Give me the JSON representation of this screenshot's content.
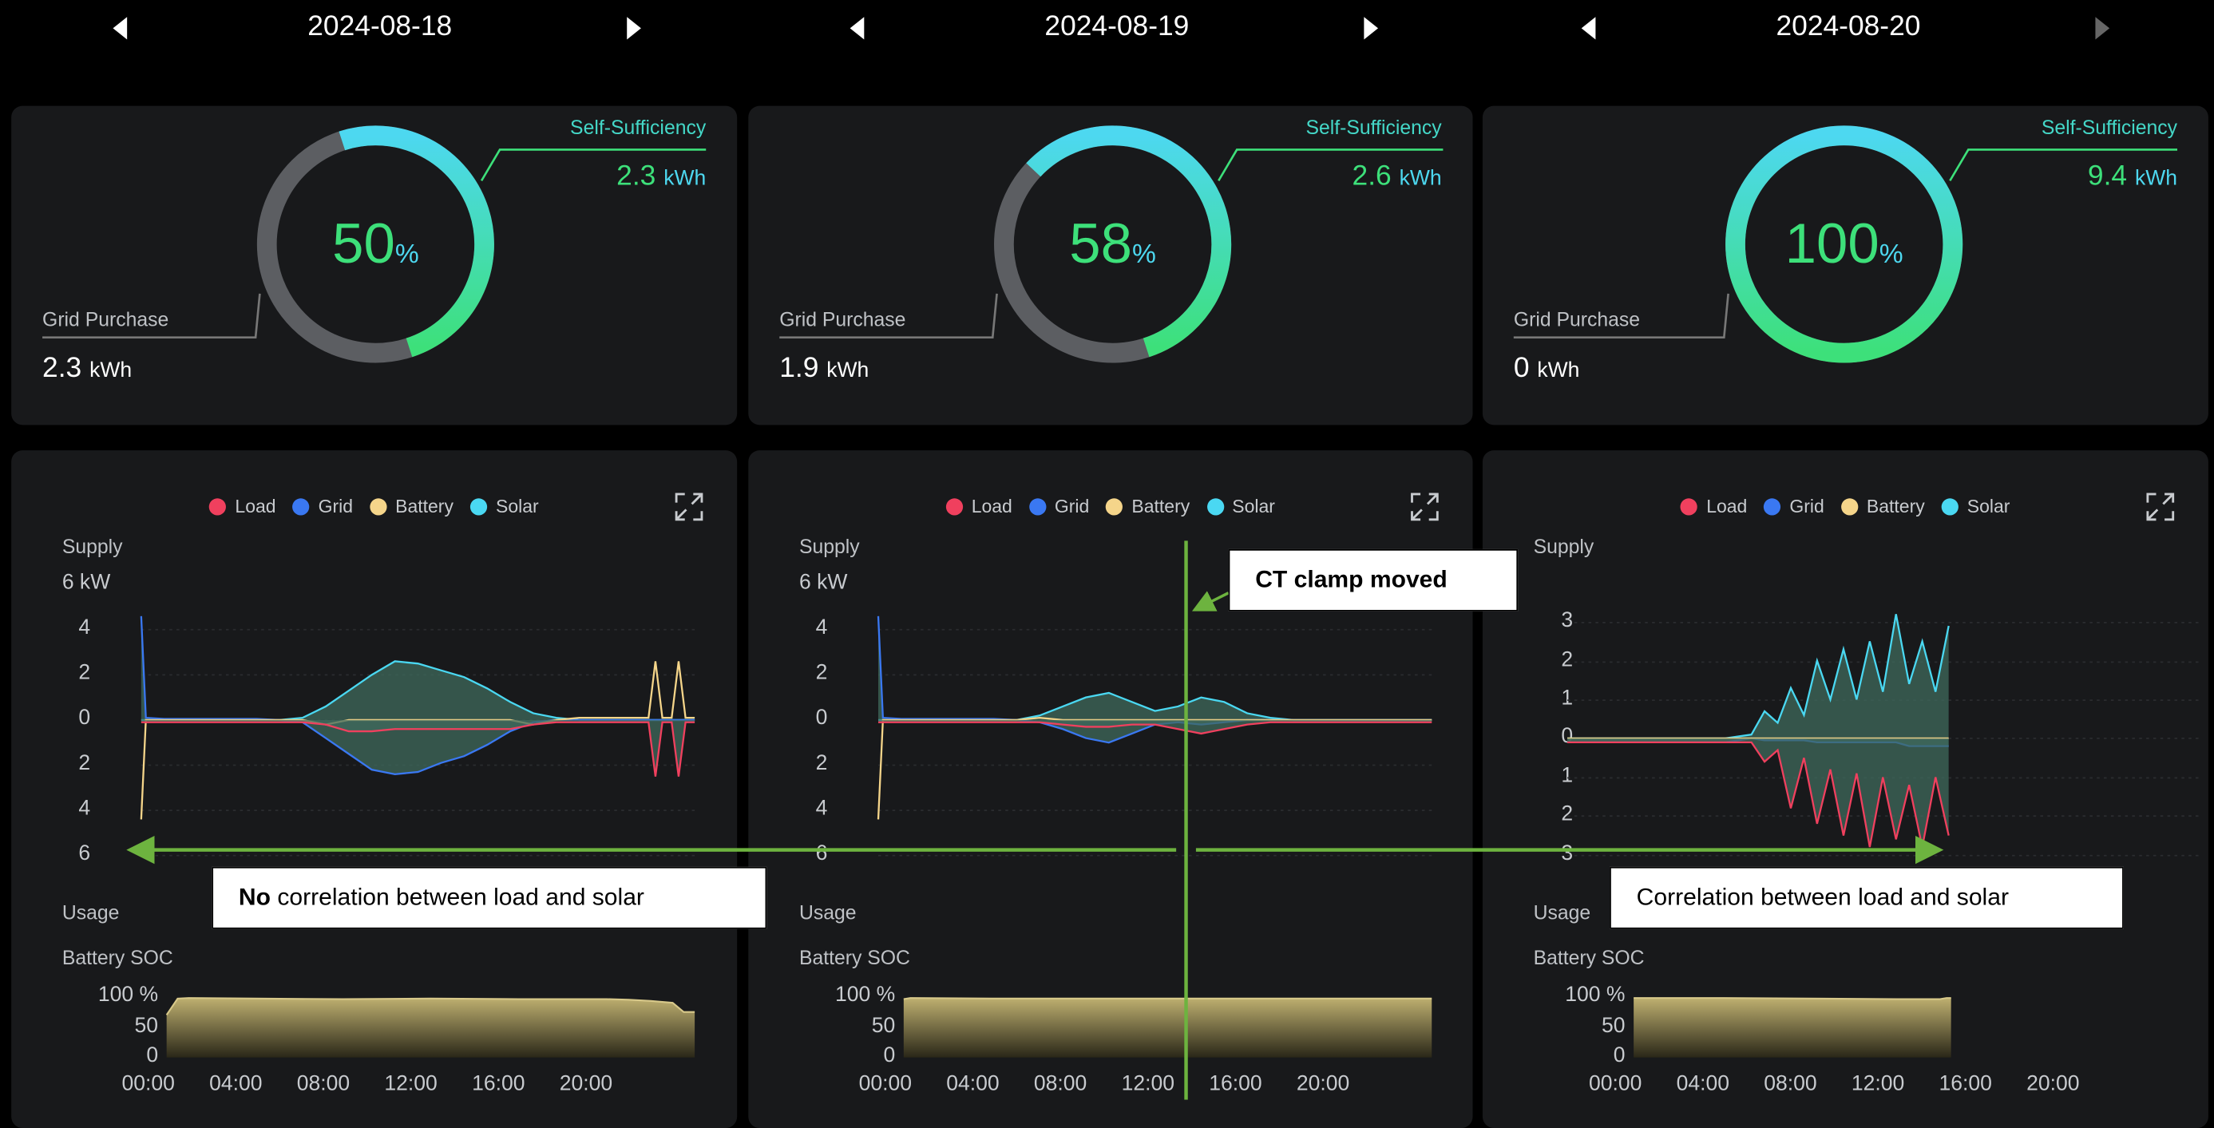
{
  "colors": {
    "load": "#f0405e",
    "grid": "#3a78f2",
    "battery": "#f5d58a",
    "solar": "#4ad8f2",
    "supply_fill": "#3f6a5c",
    "soc_fill": "#bfb070",
    "ring_gray": "#5c5e62",
    "ss_green": "#3de07a",
    "ss_cyan": "#4dd8f0",
    "annotation": "#6db33f"
  },
  "labels": {
    "self_sufficiency": "Self-Sufficiency",
    "grid_purchase": "Grid Purchase",
    "unit_kwh": "kWh",
    "percent": "%",
    "supply": "Supply",
    "usage": "Usage",
    "battery_soc": "Battery SOC",
    "legend": [
      "Load",
      "Grid",
      "Battery",
      "Solar"
    ],
    "time_ticks": [
      "00:00",
      "04:00",
      "08:00",
      "12:00",
      "16:00",
      "20:00"
    ],
    "soc_ticks": [
      "100 %",
      "50",
      "0"
    ]
  },
  "days": [
    {
      "date": "2024-08-18",
      "next_enabled": true,
      "percent": "50",
      "self_sufficiency_kwh": "2.3",
      "grid_purchase_kwh": "2.3",
      "supply_ticks": [
        "6 kW",
        "4",
        "2",
        "0",
        "2",
        "4",
        "6"
      ]
    },
    {
      "date": "2024-08-19",
      "next_enabled": true,
      "percent": "58",
      "self_sufficiency_kwh": "2.6",
      "grid_purchase_kwh": "1.9",
      "supply_ticks": [
        "6 kW",
        "4",
        "2",
        "0",
        "2",
        "4",
        "6"
      ]
    },
    {
      "date": "2024-08-20",
      "next_enabled": false,
      "percent": "100",
      "self_sufficiency_kwh": "9.4",
      "grid_purchase_kwh": "0",
      "supply_ticks": [
        "",
        "3",
        "2",
        "1",
        "0",
        "1",
        "2",
        "3"
      ]
    }
  ],
  "annotations": {
    "ct_clamp": "CT clamp moved",
    "no_corr_bold": "No",
    "no_corr_rest": " correlation between load and solar",
    "corr": "Correlation between load and solar"
  },
  "chart_data": [
    {
      "type": "area",
      "title": "2024-08-18",
      "xlabel": "",
      "ylabel": "kW",
      "x": [
        0,
        0.2,
        1,
        2,
        3,
        4,
        5,
        6,
        7,
        8,
        9,
        10,
        11,
        12,
        13,
        14,
        15,
        16,
        17,
        18,
        19,
        20,
        21,
        22,
        22.3,
        22.6,
        23,
        23.3,
        23.6,
        24
      ],
      "ylim": [
        -6,
        6
      ],
      "series": [
        {
          "name": "Solar",
          "values": [
            0,
            0,
            0,
            0,
            0,
            0,
            0,
            0,
            0.1,
            0.6,
            1.3,
            2.0,
            2.6,
            2.5,
            2.2,
            1.9,
            1.4,
            0.8,
            0.3,
            0.1,
            0,
            0,
            0,
            0,
            0,
            0,
            0,
            0,
            0,
            0
          ]
        },
        {
          "name": "Grid",
          "values": [
            4.6,
            0.1,
            0.05,
            0.05,
            0.05,
            0.05,
            0.05,
            0,
            -0.1,
            -0.8,
            -1.5,
            -2.2,
            -2.4,
            -2.3,
            -1.9,
            -1.6,
            -1.1,
            -0.5,
            -0.1,
            0,
            0,
            0,
            0,
            0,
            0,
            0,
            0,
            0,
            0,
            0
          ]
        },
        {
          "name": "Battery",
          "values": [
            -4.4,
            0,
            0,
            0,
            0,
            0,
            0,
            0,
            0,
            -0.2,
            0,
            0,
            0,
            0,
            0,
            0,
            0,
            0,
            -0.2,
            0,
            0.1,
            0.1,
            0.1,
            0.1,
            2.6,
            0.1,
            0.1,
            2.6,
            0.1,
            0.1
          ]
        },
        {
          "name": "Load",
          "values": [
            -0.1,
            -0.1,
            -0.1,
            -0.1,
            -0.1,
            -0.1,
            -0.1,
            -0.1,
            -0.1,
            -0.2,
            -0.5,
            -0.5,
            -0.4,
            -0.4,
            -0.4,
            -0.4,
            -0.4,
            -0.4,
            -0.2,
            -0.1,
            -0.1,
            -0.1,
            -0.1,
            -0.1,
            -2.5,
            -0.1,
            -0.1,
            -2.5,
            -0.1,
            -0.1
          ]
        }
      ],
      "soc": {
        "x": [
          0,
          0.5,
          1,
          4,
          8,
          12,
          16,
          20,
          21,
          22,
          23,
          23.5,
          24
        ],
        "values": [
          70,
          97,
          98,
          97,
          96,
          97,
          96,
          96,
          95,
          93,
          90,
          75,
          75
        ],
        "ylim": [
          0,
          100
        ]
      }
    },
    {
      "type": "area",
      "title": "2024-08-19",
      "xlabel": "",
      "ylabel": "kW",
      "x": [
        0,
        0.2,
        1,
        2,
        3,
        4,
        5,
        6,
        7,
        8,
        9,
        10,
        11,
        12,
        13,
        14,
        15,
        16,
        17,
        18,
        19,
        20,
        21,
        22,
        23,
        24
      ],
      "ylim": [
        -6,
        6
      ],
      "series": [
        {
          "name": "Solar",
          "values": [
            0,
            0,
            0,
            0,
            0,
            0,
            0,
            0,
            0.2,
            0.6,
            1.0,
            1.2,
            0.8,
            0.4,
            0.6,
            1.0,
            0.8,
            0.3,
            0.1,
            0,
            0,
            0,
            0,
            0,
            0,
            0
          ]
        },
        {
          "name": "Grid",
          "values": [
            4.6,
            0.1,
            0.05,
            0.05,
            0.05,
            0.05,
            0.05,
            0,
            -0.1,
            -0.4,
            -0.8,
            -1.0,
            -0.6,
            -0.2,
            -0.1,
            -0.2,
            -0.1,
            0,
            0,
            0,
            0,
            0,
            0,
            0,
            0,
            0
          ]
        },
        {
          "name": "Battery",
          "values": [
            -4.4,
            0,
            0,
            0,
            0,
            0,
            0,
            0,
            0.1,
            0,
            0,
            0,
            0,
            0,
            0,
            0,
            0,
            0,
            0,
            0,
            0,
            0,
            0,
            0,
            0,
            0
          ]
        },
        {
          "name": "Load",
          "values": [
            -0.1,
            -0.1,
            -0.1,
            -0.1,
            -0.1,
            -0.1,
            -0.1,
            -0.1,
            -0.1,
            -0.2,
            -0.3,
            -0.3,
            -0.2,
            -0.2,
            -0.4,
            -0.6,
            -0.4,
            -0.2,
            -0.1,
            -0.1,
            -0.1,
            -0.1,
            -0.1,
            -0.1,
            -0.1,
            -0.1
          ]
        }
      ],
      "soc": {
        "x": [
          0,
          0.3,
          4,
          8,
          12,
          16,
          20,
          24
        ],
        "values": [
          96,
          98,
          97,
          97,
          97,
          97,
          97,
          97
        ],
        "ylim": [
          0,
          100
        ]
      }
    },
    {
      "type": "area",
      "title": "2024-08-20",
      "xlabel": "",
      "ylabel": "kW",
      "x": [
        0,
        1,
        2,
        3,
        4,
        5,
        6,
        7,
        7.5,
        8,
        8.5,
        9,
        9.5,
        10,
        10.5,
        11,
        11.5,
        12,
        12.5,
        13,
        13.5,
        14,
        14.5
      ],
      "ylim": [
        -3,
        3
      ],
      "series": [
        {
          "name": "Solar",
          "values": [
            0,
            0,
            0,
            0,
            0,
            0,
            0,
            0.1,
            0.7,
            0.4,
            1.3,
            0.6,
            2.0,
            1.0,
            2.3,
            1.0,
            2.5,
            1.2,
            3.2,
            1.4,
            2.5,
            1.2,
            2.9
          ]
        },
        {
          "name": "Grid",
          "values": [
            -0.1,
            -0.1,
            -0.1,
            -0.1,
            -0.1,
            -0.1,
            -0.1,
            0,
            -0.05,
            -0.05,
            -0.05,
            -0.05,
            -0.1,
            -0.1,
            -0.1,
            -0.1,
            -0.1,
            -0.1,
            -0.1,
            -0.2,
            -0.2,
            -0.2,
            -0.2
          ]
        },
        {
          "name": "Battery",
          "values": [
            0,
            0,
            0,
            0,
            0,
            0,
            0,
            0,
            0,
            0,
            0,
            0,
            0,
            0,
            0,
            0,
            0,
            0,
            0,
            0,
            0,
            0,
            0
          ]
        },
        {
          "name": "Load",
          "values": [
            -0.1,
            -0.1,
            -0.1,
            -0.1,
            -0.1,
            -0.1,
            -0.1,
            -0.1,
            -0.6,
            -0.3,
            -1.8,
            -0.5,
            -2.2,
            -0.8,
            -2.5,
            -0.9,
            -2.8,
            -1.0,
            -2.6,
            -1.2,
            -2.8,
            -1.0,
            -2.5
          ]
        }
      ],
      "soc": {
        "x": [
          0,
          4,
          8,
          12,
          14,
          14.3,
          14.5
        ],
        "values": [
          98,
          98,
          97,
          96,
          96,
          98,
          98
        ],
        "ylim": [
          0,
          100
        ]
      }
    }
  ]
}
